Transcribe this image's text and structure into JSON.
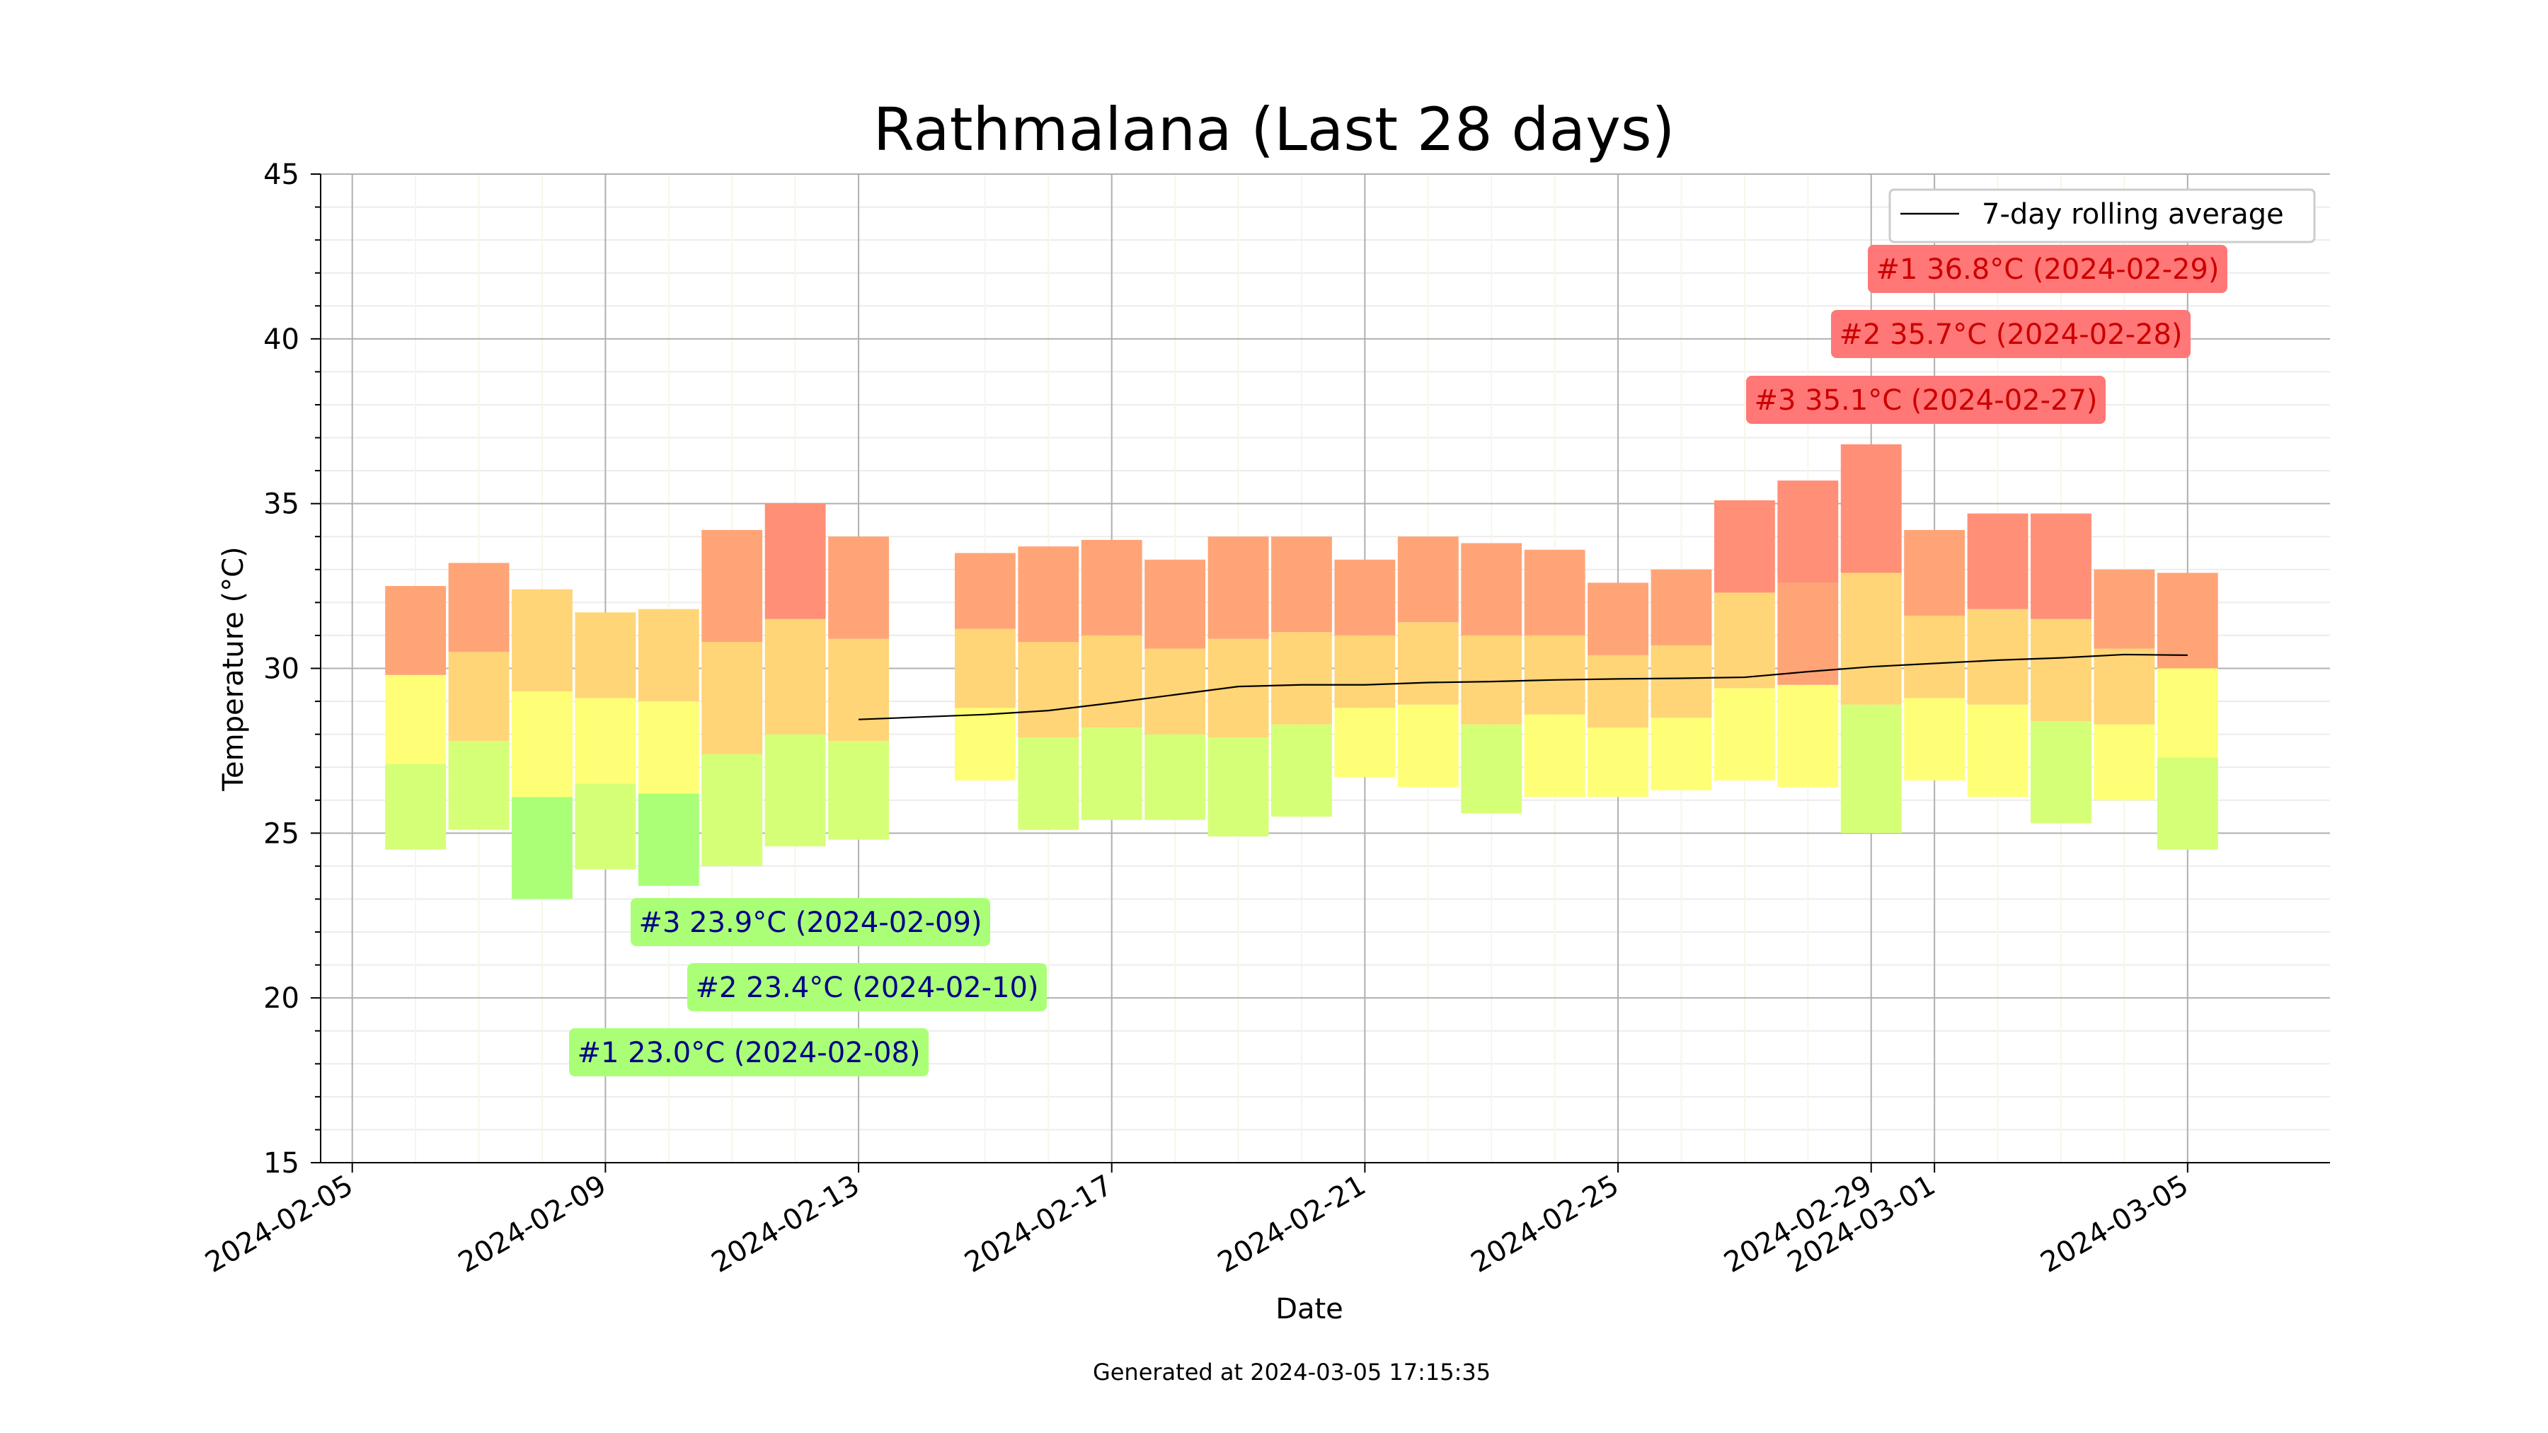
{
  "chart_data": {
    "type": "bar",
    "title": "Rathmalana (Last 28 days)",
    "xlabel": "Date",
    "ylabel": "Temperature (°C)",
    "footer": "Generated at 2024-03-05 17:15:35",
    "ylim": [
      15,
      45
    ],
    "xlim_days": [
      "2024-02-04 12:00",
      "2024-03-07 06:00"
    ],
    "yticks": [
      15,
      20,
      25,
      30,
      35,
      40,
      45
    ],
    "xticks": [
      "2024-02-05",
      "2024-02-09",
      "2024-02-13",
      "2024-02-17",
      "2024-02-21",
      "2024-02-25",
      "2024-02-29",
      "2024-03-01",
      "2024-03-05"
    ],
    "grid": true,
    "legend": {
      "position": "top-right",
      "entries": [
        {
          "label": "7-day rolling average",
          "color": "#000000"
        }
      ]
    },
    "color_scale": {
      "below_25": "#aaff77",
      "25_to_27": "#d5ff77",
      "27_to_29": "#ffff77",
      "29_to_31": "#ffd577",
      "31_to_33": "#ffa477",
      "33_to_35": "#ff8f77",
      "35_plus": "#ff7777"
    },
    "days": [
      {
        "date": "2024-02-06",
        "min": 24.5,
        "q1": 27.1,
        "q2": 29.8,
        "max": 32.5
      },
      {
        "date": "2024-02-07",
        "min": 25.1,
        "q1": 27.8,
        "q2": 30.5,
        "max": 33.2
      },
      {
        "date": "2024-02-08",
        "min": 23.0,
        "q1": 26.1,
        "q2": 29.3,
        "max": 32.4
      },
      {
        "date": "2024-02-09",
        "min": 23.9,
        "q1": 26.5,
        "q2": 29.1,
        "max": 31.7
      },
      {
        "date": "2024-02-10",
        "min": 23.4,
        "q1": 26.2,
        "q2": 29.0,
        "max": 31.8
      },
      {
        "date": "2024-02-11",
        "min": 24.0,
        "q1": 27.4,
        "q2": 30.8,
        "max": 34.2
      },
      {
        "date": "2024-02-12",
        "min": 24.6,
        "q1": 28.0,
        "q2": 31.5,
        "max": 35.0
      },
      {
        "date": "2024-02-13",
        "min": 24.8,
        "q1": 27.8,
        "q2": 30.9,
        "max": 34.0
      },
      {
        "date": "2024-02-15",
        "min": 26.6,
        "q1": 28.8,
        "q2": 31.2,
        "max": 33.5
      },
      {
        "date": "2024-02-16",
        "min": 25.1,
        "q1": 27.9,
        "q2": 30.8,
        "max": 33.7
      },
      {
        "date": "2024-02-17",
        "min": 25.4,
        "q1": 28.2,
        "q2": 31.0,
        "max": 33.9
      },
      {
        "date": "2024-02-18",
        "min": 25.4,
        "q1": 28.0,
        "q2": 30.6,
        "max": 33.3
      },
      {
        "date": "2024-02-19",
        "min": 24.9,
        "q1": 27.9,
        "q2": 30.9,
        "max": 34.0
      },
      {
        "date": "2024-02-20",
        "min": 25.5,
        "q1": 28.3,
        "q2": 31.1,
        "max": 34.0
      },
      {
        "date": "2024-02-21",
        "min": 26.7,
        "q1": 28.8,
        "q2": 31.0,
        "max": 33.3
      },
      {
        "date": "2024-02-22",
        "min": 26.4,
        "q1": 28.9,
        "q2": 31.4,
        "max": 34.0
      },
      {
        "date": "2024-02-23",
        "min": 25.6,
        "q1": 28.3,
        "q2": 31.0,
        "max": 33.8
      },
      {
        "date": "2024-02-24",
        "min": 26.1,
        "q1": 28.6,
        "q2": 31.0,
        "max": 33.6
      },
      {
        "date": "2024-02-25",
        "min": 26.1,
        "q1": 28.2,
        "q2": 30.4,
        "max": 32.6
      },
      {
        "date": "2024-02-26",
        "min": 26.3,
        "q1": 28.5,
        "q2": 30.7,
        "max": 33.0
      },
      {
        "date": "2024-02-27",
        "min": 26.6,
        "q1": 29.4,
        "q2": 32.3,
        "max": 35.1
      },
      {
        "date": "2024-02-28",
        "min": 26.4,
        "q1": 29.5,
        "q2": 32.6,
        "max": 35.7
      },
      {
        "date": "2024-02-29",
        "min": 25.0,
        "q1": 28.9,
        "q2": 32.9,
        "max": 36.8
      },
      {
        "date": "2024-03-01",
        "min": 26.6,
        "q1": 29.1,
        "q2": 31.6,
        "max": 34.2
      },
      {
        "date": "2024-03-02",
        "min": 26.1,
        "q1": 28.9,
        "q2": 31.8,
        "max": 34.7
      },
      {
        "date": "2024-03-03",
        "min": 25.3,
        "q1": 28.4,
        "q2": 31.5,
        "max": 34.7
      },
      {
        "date": "2024-03-04",
        "min": 26.0,
        "q1": 28.3,
        "q2": 30.6,
        "max": 33.0
      },
      {
        "date": "2024-03-05",
        "min": 24.5,
        "q1": 27.3,
        "q2": 30.0,
        "max": 32.9
      }
    ],
    "rolling_average": {
      "name": "7-day rolling average",
      "points": [
        {
          "date": "2024-02-13",
          "value": 28.45
        },
        {
          "date": "2024-02-15",
          "value": 28.6
        },
        {
          "date": "2024-02-16",
          "value": 28.72
        },
        {
          "date": "2024-02-17",
          "value": 28.95
        },
        {
          "date": "2024-02-18",
          "value": 29.2
        },
        {
          "date": "2024-02-19",
          "value": 29.45
        },
        {
          "date": "2024-02-20",
          "value": 29.5
        },
        {
          "date": "2024-02-21",
          "value": 29.5
        },
        {
          "date": "2024-02-22",
          "value": 29.57
        },
        {
          "date": "2024-02-23",
          "value": 29.6
        },
        {
          "date": "2024-02-24",
          "value": 29.65
        },
        {
          "date": "2024-02-25",
          "value": 29.68
        },
        {
          "date": "2024-02-26",
          "value": 29.7
        },
        {
          "date": "2024-02-27",
          "value": 29.73
        },
        {
          "date": "2024-02-28",
          "value": 29.9
        },
        {
          "date": "2024-02-29",
          "value": 30.05
        },
        {
          "date": "2024-03-01",
          "value": 30.15
        },
        {
          "date": "2024-03-02",
          "value": 30.25
        },
        {
          "date": "2024-03-03",
          "value": 30.32
        },
        {
          "date": "2024-03-04",
          "value": 30.42
        },
        {
          "date": "2024-03-05",
          "value": 30.4
        }
      ]
    },
    "annotations": {
      "max": [
        {
          "label": "#1 36.8°C (2024-02-29)",
          "value": 36.8,
          "date": "2024-02-29"
        },
        {
          "label": "#2 35.7°C (2024-02-28)",
          "value": 35.7,
          "date": "2024-02-28"
        },
        {
          "label": "#3 35.1°C (2024-02-27)",
          "value": 35.1,
          "date": "2024-02-27"
        }
      ],
      "min": [
        {
          "label": "#3 23.9°C (2024-02-09)",
          "value": 23.9,
          "date": "2024-02-09"
        },
        {
          "label": "#2 23.4°C (2024-02-10)",
          "value": 23.4,
          "date": "2024-02-10"
        },
        {
          "label": "#1 23.0°C (2024-02-08)",
          "value": 23.0,
          "date": "2024-02-08"
        }
      ],
      "max_box_color": "#ff7777",
      "max_text_color": "#cc0000",
      "min_box_color": "#aaff77",
      "min_text_color": "#000088"
    }
  }
}
